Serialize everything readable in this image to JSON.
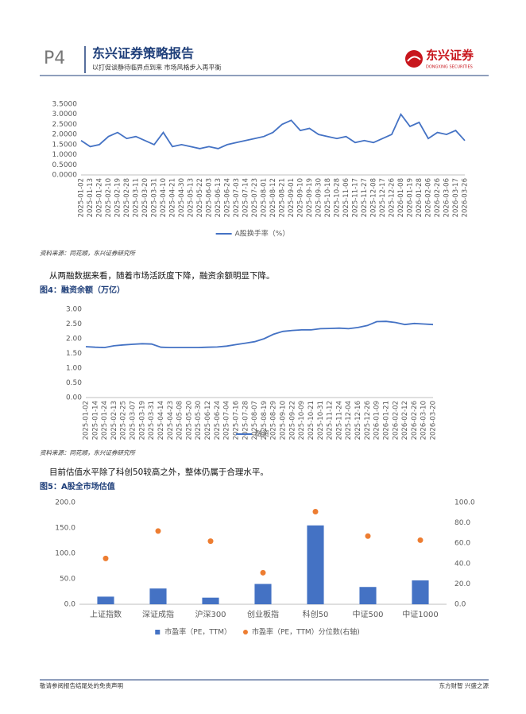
{
  "header": {
    "page": "P4",
    "title": "东兴证券策略报告",
    "subtitle": "以打促谈静待临界点到来 市场风格步入再平衡",
    "logo": "东兴证券",
    "logo_en": "DONGXING SECURITIES"
  },
  "texts": {
    "source1": "资料来源：同花顺，东兴证券研究所",
    "para1": "从两融数据来看，随着市场活跃度下降，融资余额明显下降。",
    "source2": "资料来源：同花顺，东兴证券研究所",
    "para2": "目前估值水平除了科创50较高之外，整体仍属于合理水平。"
  },
  "footer": {
    "left": "敬请参阅报告结尾处的免责声明",
    "right": "东方财智 兴盛之源"
  },
  "chart_data": [
    {
      "type": "line",
      "grid": false,
      "categories": [
        "2025-01-02",
        "2025-01-13",
        "2025-01-24",
        "2025-02-10",
        "2025-02-19",
        "2025-02-28",
        "2025-03-11",
        "2025-03-20",
        "2025-03-31",
        "2025-04-10",
        "2025-04-21",
        "2025-04-30",
        "2025-05-13",
        "2025-05-22",
        "2025-06-03",
        "2025-06-13",
        "2025-06-24",
        "2025-07-03",
        "2025-07-14",
        "2025-07-23",
        "2025-08-01",
        "2025-08-12",
        "2025-08-21",
        "2025-09-01",
        "2025-09-10",
        "2025-09-19",
        "2025-09-30",
        "2025-10-18",
        "2025-10-28",
        "2025-11-06",
        "2025-11-17",
        "2025-11-27",
        "2025-12-08",
        "2025-12-17",
        "2025-12-26",
        "2026-01-08",
        "2026-01-19",
        "2026-01-28",
        "2026-02-06",
        "2026-02-26",
        "2026-03-06",
        "2026-03-17",
        "2026-03-26"
      ],
      "series": [
        {
          "name": "A股换手率（%）",
          "color": "#4472c4",
          "values": [
            1.7,
            1.4,
            1.5,
            1.9,
            2.1,
            1.8,
            1.9,
            1.7,
            1.5,
            2.1,
            1.4,
            1.5,
            1.4,
            1.3,
            1.4,
            1.3,
            1.5,
            1.6,
            1.7,
            1.8,
            1.9,
            2.1,
            2.5,
            2.7,
            2.2,
            2.3,
            2.0,
            1.9,
            1.8,
            1.9,
            1.6,
            1.7,
            1.6,
            1.8,
            2.0,
            3.0,
            2.4,
            2.6,
            1.8,
            2.1,
            2.0,
            2.2,
            1.7
          ]
        }
      ],
      "ylim": [
        0,
        3.5
      ],
      "yticks": [
        {
          "value": 0,
          "label": "0.0000"
        },
        {
          "value": 0.5,
          "label": "0.5000"
        },
        {
          "value": 1,
          "label": "1.0000"
        },
        {
          "value": 1.5,
          "label": "1.5000"
        },
        {
          "value": 2,
          "label": "2.0000"
        },
        {
          "value": 2.5,
          "label": "2.5000"
        },
        {
          "value": 3,
          "label": "3.0000"
        },
        {
          "value": 3.5,
          "label": "3.5000"
        }
      ]
    },
    {
      "type": "line",
      "title": "图4：融资余额（万亿）",
      "grid": false,
      "categories": [
        "2025-01-02",
        "2025-01-14",
        "2025-01-24",
        "2025-02-13",
        "2025-02-25",
        "2025-03-07",
        "2025-03-19",
        "2025-03-31",
        "2025-04-14",
        "2025-04-23",
        "2025-05-08",
        "2025-05-20",
        "2025-05-30",
        "2025-06-12",
        "2025-06-24",
        "2025-07-04",
        "2025-07-16",
        "2025-07-28",
        "2025-08-07",
        "2025-08-19",
        "2025-08-29",
        "2025-09-10",
        "2025-09-22",
        "2025-10-09",
        "2025-10-21",
        "2025-10-31",
        "2025-11-12",
        "2025-11-24",
        "2025-12-04",
        "2025-12-16",
        "2025-12-26",
        "2026-01-09",
        "2026-01-21",
        "2026-02-02",
        "2026-02-12",
        "2026-02-26",
        "2026-03-10",
        "2026-03-20"
      ],
      "series": [
        {
          "name": "融资",
          "color": "#4472c4",
          "values": [
            1.73,
            1.71,
            1.7,
            1.76,
            1.79,
            1.81,
            1.83,
            1.82,
            1.71,
            1.7,
            1.7,
            1.7,
            1.7,
            1.71,
            1.72,
            1.75,
            1.8,
            1.85,
            1.9,
            2.0,
            2.15,
            2.25,
            2.28,
            2.3,
            2.3,
            2.34,
            2.35,
            2.36,
            2.34,
            2.38,
            2.45,
            2.58,
            2.59,
            2.55,
            2.48,
            2.52,
            2.5,
            2.48
          ]
        }
      ],
      "ylim": [
        0,
        3
      ],
      "yticks": [
        {
          "value": 0,
          "label": "0.00"
        },
        {
          "value": 0.5,
          "label": "0.50"
        },
        {
          "value": 1,
          "label": "1.00"
        },
        {
          "value": 1.5,
          "label": "1.50"
        },
        {
          "value": 2,
          "label": "2.00"
        },
        {
          "value": 2.5,
          "label": "2.50"
        },
        {
          "value": 3,
          "label": "3.00"
        }
      ]
    },
    {
      "type": "bar",
      "title": "图5：A股全市场估值",
      "grid": false,
      "categories": [
        "上证指数",
        "深证成指",
        "沪深300",
        "创业板指",
        "科创50",
        "中证500",
        "中证1000"
      ],
      "series": [
        {
          "name": "市盈率（PE，TTM）",
          "color": "#4472c4",
          "values": [
            15,
            31,
            13,
            40,
            155,
            34,
            47
          ]
        },
        {
          "name": "市盈率（PE，TTM）分位数(右轴)",
          "type": "scatter",
          "axis": "y2",
          "color": "#ed7d31",
          "values": [
            45,
            72,
            62,
            31,
            91,
            67,
            63
          ]
        }
      ],
      "ylim": [
        0,
        200
      ],
      "yticks": [
        {
          "value": 0,
          "label": "0.0"
        },
        {
          "value": 50,
          "label": "50.0"
        },
        {
          "value": 100,
          "label": "100.0"
        },
        {
          "value": 150,
          "label": "150.0"
        },
        {
          "value": 200,
          "label": "200.0"
        }
      ],
      "y2lim": [
        0,
        100
      ],
      "y2ticks": [
        {
          "value": 0,
          "label": "0.0"
        },
        {
          "value": 20,
          "label": "20.0"
        },
        {
          "value": 40,
          "label": "40.0"
        },
        {
          "value": 60,
          "label": "60.0"
        },
        {
          "value": 80,
          "label": "80.0"
        },
        {
          "value": 100,
          "label": "100.0"
        }
      ]
    }
  ]
}
